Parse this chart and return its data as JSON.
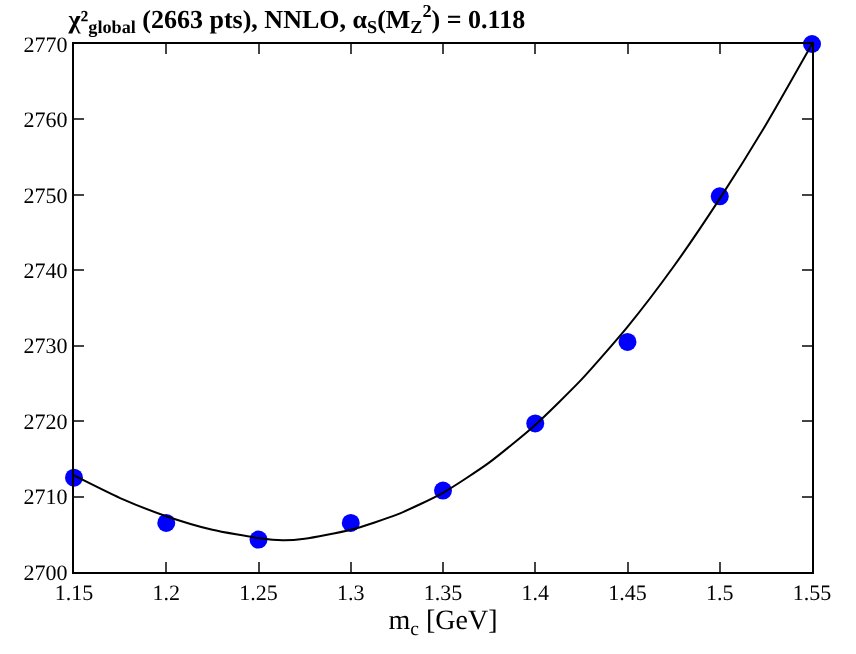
{
  "chart_data": {
    "type": "scatter",
    "title": "χ²$_{global}$ (2663 pts), NNLO, α$_{S}$(M$_{Z}$$^{2}$) = 0.118",
    "xlabel": "m$_{c}$ [GeV]",
    "series": [
      {
        "color": "#0000ff",
        "marker": "circle",
        "x": [
          1.15,
          1.2,
          1.25,
          1.3,
          1.35,
          1.4,
          1.45,
          1.5,
          1.55
        ],
        "values": [
          2712.5,
          2706.5,
          2704.3,
          2706.5,
          2710.8,
          2719.7,
          2730.5,
          2749.8,
          2770
        ]
      },
      {
        "type": "line",
        "color": "#000000",
        "marker": "none",
        "line_style": "solid",
        "x": [
          1.15,
          1.175,
          1.2,
          1.225,
          1.25,
          1.263,
          1.275,
          1.3,
          1.325,
          1.35,
          1.375,
          1.4,
          1.425,
          1.45,
          1.475,
          1.5,
          1.525,
          1.55
        ],
        "values": [
          2712.8,
          2709.8,
          2707.4,
          2705.6,
          2704.5,
          2704.2,
          2704.4,
          2705.6,
          2707.6,
          2710.5,
          2714.5,
          2719.5,
          2725.5,
          2732.5,
          2740.5,
          2749.5,
          2759.3,
          2770
        ]
      }
    ],
    "xlim": [
      1.15,
      1.55
    ],
    "xticks": [
      1.15,
      1.2,
      1.25,
      1.3,
      1.35,
      1.4,
      1.45,
      1.5,
      1.55
    ],
    "ylim": [
      2700,
      2770
    ],
    "yticks": [
      2700,
      2710,
      2720,
      2730,
      2740,
      2750,
      2760,
      2770
    ]
  }
}
